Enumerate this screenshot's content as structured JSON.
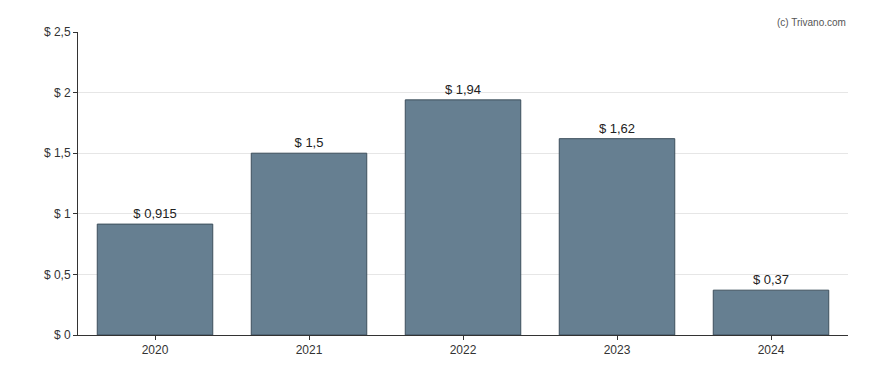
{
  "chart_data": {
    "type": "bar",
    "categories": [
      "2020",
      "2021",
      "2022",
      "2023",
      "2024"
    ],
    "values": [
      0.915,
      1.5,
      1.94,
      1.62,
      0.37
    ],
    "value_labels": [
      "$ 0,915",
      "$ 1,5",
      "$ 1,94",
      "$ 1,62",
      "$ 0,37"
    ],
    "data_labels": true,
    "color": "#667f91",
    "ylim": [
      0,
      2.5
    ],
    "yticks": [
      {
        "value": 0,
        "label": "$ 0"
      },
      {
        "value": 0.5,
        "label": "$ 0,5"
      },
      {
        "value": 1,
        "label": "$ 1"
      },
      {
        "value": 1.5,
        "label": "$ 1,5"
      },
      {
        "value": 2,
        "label": "$ 2"
      },
      {
        "value": 2.5,
        "label": "$ 2,5"
      }
    ],
    "grid": true,
    "annotations": [
      "(c) Trivano.com"
    ]
  }
}
